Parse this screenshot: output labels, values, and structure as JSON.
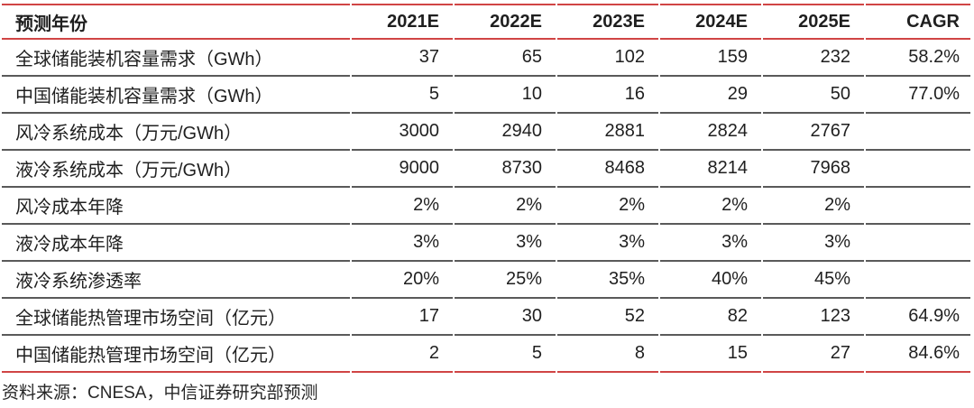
{
  "table": {
    "header": {
      "label": "预测年份",
      "years": [
        "2021E",
        "2022E",
        "2023E",
        "2024E",
        "2025E"
      ],
      "cagr": "CAGR"
    },
    "rows": [
      {
        "label": "全球储能装机容量需求（GWh）",
        "values": [
          "37",
          "65",
          "102",
          "159",
          "232"
        ],
        "cagr": "58.2%"
      },
      {
        "label": "中国储能装机容量需求（GWh）",
        "values": [
          "5",
          "10",
          "16",
          "29",
          "50"
        ],
        "cagr": "77.0%"
      },
      {
        "label": "风冷系统成本（万元/GWh）",
        "values": [
          "3000",
          "2940",
          "2881",
          "2824",
          "2767"
        ],
        "cagr": ""
      },
      {
        "label": "液冷系统成本（万元/GWh）",
        "values": [
          "9000",
          "8730",
          "8468",
          "8214",
          "7968"
        ],
        "cagr": ""
      },
      {
        "label": "风冷成本年降",
        "values": [
          "2%",
          "2%",
          "2%",
          "2%",
          "2%"
        ],
        "cagr": ""
      },
      {
        "label": "液冷成本年降",
        "values": [
          "3%",
          "3%",
          "3%",
          "3%",
          "3%"
        ],
        "cagr": ""
      },
      {
        "label": "液冷系统渗透率",
        "values": [
          "20%",
          "25%",
          "35%",
          "40%",
          "45%"
        ],
        "cagr": ""
      },
      {
        "label": "全球储能热管理市场空间（亿元）",
        "values": [
          "17",
          "30",
          "52",
          "82",
          "123"
        ],
        "cagr": "64.9%"
      },
      {
        "label": "中国储能热管理市场空间（亿元）",
        "values": [
          "2",
          "5",
          "8",
          "15",
          "27"
        ],
        "cagr": "84.6%"
      }
    ],
    "source_note": "资料来源：CNESA，中信证券研究部预测"
  },
  "colors": {
    "accent_red": "#d04545",
    "separator_gray": "#5a5a5a",
    "text": "#1f1f1f"
  }
}
